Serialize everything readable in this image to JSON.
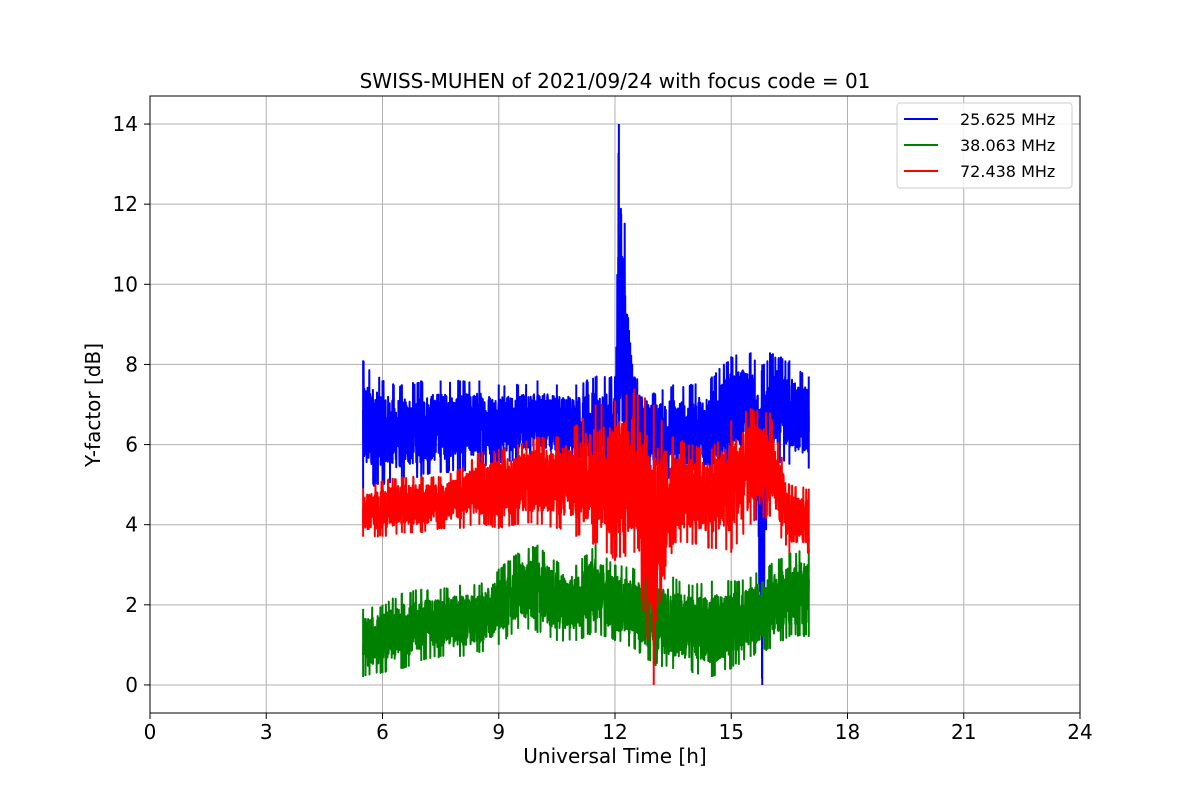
{
  "chart_data": {
    "type": "line",
    "title": "SWISS-MUHEN of 2021/09/24 with focus code = 01",
    "xlabel": "Universal Time [h]",
    "ylabel": "Y-factor [dB]",
    "xlim": [
      0,
      24
    ],
    "ylim": [
      -0.7,
      14.7
    ],
    "xticks": [
      0,
      3,
      6,
      9,
      12,
      15,
      18,
      21,
      24
    ],
    "yticks": [
      0,
      2,
      4,
      6,
      8,
      10,
      12,
      14
    ],
    "grid": true,
    "legend_position": "top-right",
    "series": [
      {
        "name": "25.625 MHz",
        "color": "#0000ff",
        "x": [
          5.5,
          6.0,
          6.5,
          7.0,
          7.5,
          8.0,
          8.5,
          9.0,
          9.5,
          10.0,
          10.5,
          11.0,
          11.5,
          12.0,
          12.1,
          12.5,
          13.0,
          13.5,
          14.0,
          14.5,
          15.0,
          15.5,
          15.8,
          16.0,
          16.5,
          17.0
        ],
        "low": [
          4.9,
          5.0,
          5.1,
          5.2,
          5.3,
          5.3,
          5.4,
          5.5,
          5.6,
          5.6,
          5.5,
          5.4,
          5.1,
          4.9,
          5.0,
          5.1,
          5.2,
          5.1,
          5.0,
          5.0,
          5.5,
          5.7,
          0.0,
          5.6,
          5.5,
          5.4
        ],
        "high": [
          8.1,
          7.6,
          7.5,
          7.6,
          7.6,
          7.6,
          7.6,
          7.5,
          7.5,
          7.6,
          7.5,
          7.5,
          7.7,
          7.7,
          14.0,
          7.7,
          7.3,
          7.5,
          7.5,
          7.7,
          8.2,
          8.3,
          8.0,
          8.3,
          8.1,
          7.7
        ]
      },
      {
        "name": "38.063 MHz",
        "color": "#008000",
        "x": [
          5.5,
          6.0,
          6.5,
          7.0,
          7.5,
          8.0,
          8.5,
          9.0,
          9.5,
          10.0,
          10.5,
          11.0,
          11.5,
          12.0,
          12.5,
          13.0,
          13.5,
          14.0,
          14.5,
          15.0,
          15.5,
          16.0,
          16.5,
          17.0
        ],
        "low": [
          0.2,
          0.3,
          0.4,
          0.6,
          0.7,
          0.7,
          0.8,
          1.0,
          1.4,
          1.3,
          1.1,
          1.1,
          1.3,
          1.1,
          0.9,
          0.5,
          0.4,
          0.3,
          0.2,
          0.4,
          0.7,
          0.9,
          1.2,
          1.2
        ],
        "high": [
          1.9,
          2.0,
          2.3,
          2.4,
          2.4,
          2.5,
          2.5,
          2.9,
          3.3,
          3.5,
          3.1,
          3.0,
          3.5,
          3.0,
          2.9,
          2.8,
          2.7,
          2.5,
          2.6,
          2.6,
          2.7,
          3.0,
          3.3,
          3.4
        ]
      },
      {
        "name": "72.438 MHz",
        "color": "#ff0000",
        "x": [
          5.5,
          6.0,
          6.5,
          7.0,
          7.5,
          8.0,
          8.5,
          9.0,
          9.5,
          10.0,
          10.5,
          11.0,
          11.5,
          12.0,
          12.5,
          13.0,
          13.5,
          14.0,
          14.5,
          15.0,
          15.5,
          16.0,
          16.5,
          17.0
        ],
        "low": [
          3.7,
          3.7,
          3.8,
          3.8,
          3.9,
          3.9,
          4.0,
          3.9,
          4.0,
          4.0,
          3.9,
          3.7,
          3.5,
          3.1,
          3.3,
          0.0,
          3.5,
          3.5,
          3.4,
          3.3,
          4.0,
          4.2,
          3.3,
          3.3
        ],
        "high": [
          4.9,
          5.1,
          5.2,
          5.2,
          5.2,
          5.4,
          5.8,
          5.9,
          6.0,
          6.2,
          6.2,
          6.5,
          7.0,
          7.1,
          7.4,
          7.0,
          6.2,
          6.0,
          5.9,
          6.6,
          6.9,
          6.8,
          5.0,
          4.9
        ]
      }
    ]
  }
}
